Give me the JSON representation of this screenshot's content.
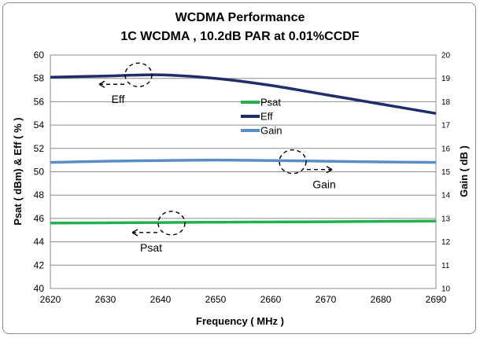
{
  "chart_data": {
    "type": "line",
    "title": "WCDMA  Performance",
    "subtitle": "1C  WCDMA , 10.2dB PAR at 0.01%CCDF",
    "xlabel": "Frequency ( MHz )",
    "ylabel": "Psat ( dBm) & Eff ( % )",
    "y2label": "Gain ( dB )",
    "xlim": [
      2620,
      2690
    ],
    "ylim": [
      40,
      60
    ],
    "y2lim": [
      10,
      20
    ],
    "x_ticks": [
      "2620",
      "2630",
      "2640",
      "2650",
      "2660",
      "2670",
      "2680",
      "2690"
    ],
    "y_ticks": [
      "40",
      "42",
      "44",
      "46",
      "48",
      "50",
      "52",
      "54",
      "56",
      "58",
      "60"
    ],
    "y2_ticks": [
      "10",
      "11",
      "12",
      "13",
      "14",
      "15",
      "16",
      "17",
      "18",
      "19",
      "20"
    ],
    "legend": {
      "position": "center",
      "entries": [
        "Psat",
        "Eff",
        "Gain"
      ]
    },
    "series": [
      {
        "name": "Psat",
        "axis": "left",
        "color": "#22b14c",
        "x": [
          2620,
          2630,
          2640,
          2650,
          2660,
          2670,
          2680,
          2690
        ],
        "values": [
          45.6,
          45.62,
          45.65,
          45.68,
          45.7,
          45.72,
          45.75,
          45.78
        ]
      },
      {
        "name": "Eff",
        "axis": "left",
        "color": "#1f2d6b",
        "x": [
          2620,
          2630,
          2640,
          2650,
          2660,
          2670,
          2680,
          2690
        ],
        "values": [
          58.1,
          58.2,
          58.3,
          58.0,
          57.4,
          56.6,
          55.8,
          55.0
        ]
      },
      {
        "name": "Gain",
        "axis": "right",
        "color": "#5b8ec4",
        "x": [
          2620,
          2630,
          2640,
          2650,
          2660,
          2670,
          2680,
          2690
        ],
        "values": [
          15.4,
          15.45,
          15.48,
          15.5,
          15.48,
          15.45,
          15.42,
          15.4
        ]
      }
    ],
    "annotations": [
      {
        "label": "Eff",
        "x": 2636,
        "y": 58.3,
        "axis": "left",
        "direction": "left"
      },
      {
        "label": "Gain",
        "x": 2664,
        "y": 15.43,
        "axis": "right",
        "direction": "right"
      },
      {
        "label": "Psat",
        "x": 2642,
        "y": 45.6,
        "axis": "left",
        "direction": "left"
      }
    ]
  }
}
